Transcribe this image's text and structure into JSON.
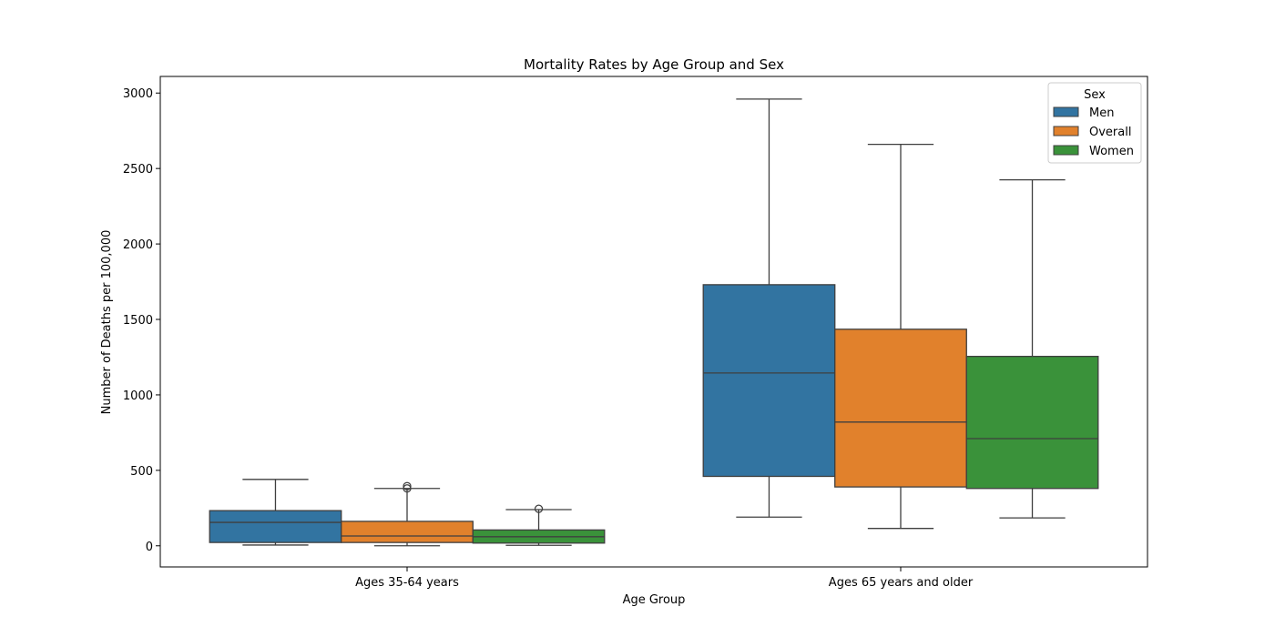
{
  "chart_data": {
    "type": "box",
    "title": "Mortality Rates by Age Group and Sex",
    "xlabel": "Age Group",
    "ylabel": "Number of Deaths per 100,000",
    "ylim": [
      -140,
      3110
    ],
    "yticks": [
      0,
      500,
      1000,
      1500,
      2000,
      2500,
      3000
    ],
    "categories": [
      "Ages 35-64 years",
      "Ages 65 years and older"
    ],
    "legend": {
      "title": "Sex",
      "position": "top-right"
    },
    "series": [
      {
        "name": "Men",
        "color": "#3274a1",
        "boxes": [
          {
            "whislo": 5,
            "q1": 22,
            "med": 155,
            "q3": 233,
            "whishi": 440,
            "fliers": []
          },
          {
            "whislo": 190,
            "q1": 460,
            "med": 1145,
            "q3": 1730,
            "whishi": 2960,
            "fliers": []
          }
        ]
      },
      {
        "name": "Overall",
        "color": "#e1812c",
        "boxes": [
          {
            "whislo": 0,
            "q1": 22,
            "med": 65,
            "q3": 162,
            "whishi": 380,
            "fliers": [
              380,
              395
            ]
          },
          {
            "whislo": 115,
            "q1": 390,
            "med": 820,
            "q3": 1435,
            "whishi": 2660,
            "fliers": []
          }
        ]
      },
      {
        "name": "Women",
        "color": "#3a923a",
        "boxes": [
          {
            "whislo": 3,
            "q1": 18,
            "med": 60,
            "q3": 105,
            "whishi": 240,
            "fliers": [
              245
            ]
          },
          {
            "whislo": 185,
            "q1": 380,
            "med": 710,
            "q3": 1255,
            "whishi": 2425,
            "fliers": []
          }
        ]
      }
    ]
  }
}
